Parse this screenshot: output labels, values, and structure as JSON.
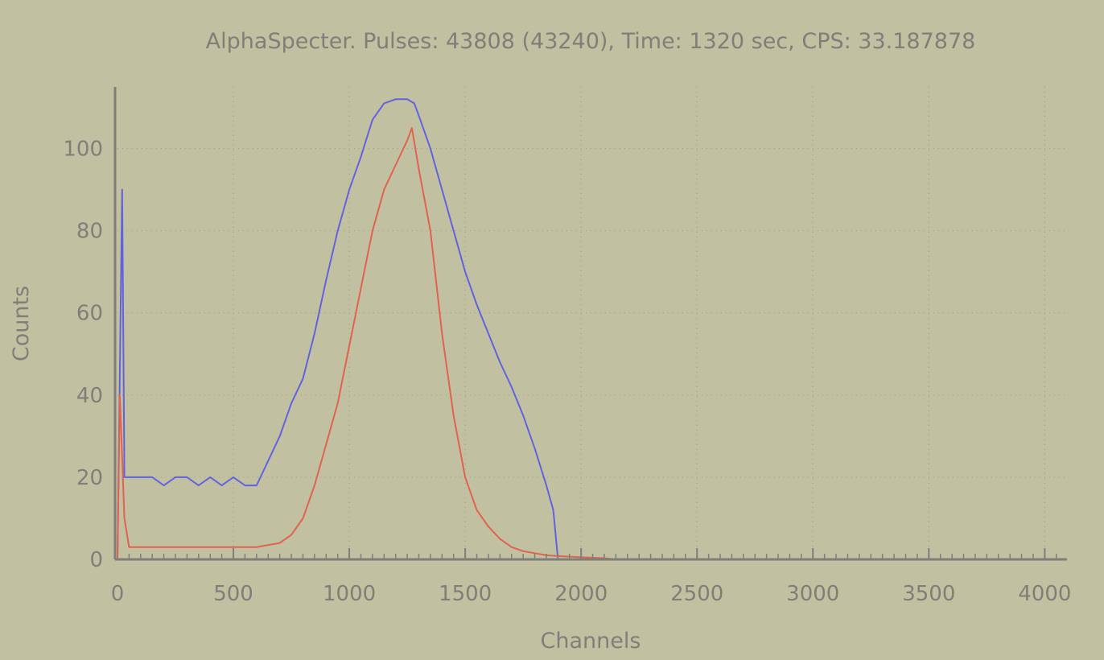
{
  "colors": {
    "background": "#c1c1a1",
    "axis": "#7f7f7a",
    "grid": "#9d9d87",
    "series_blue": "#6262e0",
    "series_red": "#e0624f"
  },
  "chart_data": {
    "type": "line",
    "title": "AlphaSpecter. Pulses: 43808 (43240), Time: 1320 sec, CPS: 33.187878",
    "xlabel": "Channels",
    "ylabel": "Counts",
    "xlim": [
      0,
      4096
    ],
    "ylim": [
      0,
      115
    ],
    "grid": true,
    "x_ticks": [
      0,
      500,
      1000,
      1500,
      2000,
      2500,
      3000,
      3500,
      4000
    ],
    "x_tick_labels": [
      "0",
      "500",
      "1000",
      "1500",
      "2000",
      "2500",
      "3000",
      "3500",
      "4000"
    ],
    "y_ticks": [
      0,
      20,
      40,
      60,
      80,
      100
    ],
    "y_tick_labels": [
      "0",
      "20",
      "40",
      "60",
      "80",
      "100"
    ],
    "series": [
      {
        "color": "#6262e0",
        "x": [
          0,
          10,
          20,
          30,
          50,
          100,
          150,
          200,
          250,
          300,
          350,
          400,
          450,
          500,
          550,
          600,
          650,
          700,
          750,
          800,
          850,
          900,
          950,
          1000,
          1050,
          1100,
          1150,
          1200,
          1250,
          1280,
          1300,
          1350,
          1400,
          1450,
          1500,
          1550,
          1600,
          1650,
          1700,
          1750,
          1800,
          1850,
          1880,
          1890,
          1900,
          1950,
          2000,
          4096
        ],
        "y": [
          0,
          45,
          90,
          20,
          20,
          20,
          20,
          18,
          20,
          20,
          18,
          20,
          18,
          20,
          18,
          18,
          24,
          30,
          38,
          44,
          55,
          68,
          80,
          90,
          98,
          107,
          111,
          112,
          112,
          111,
          108,
          100,
          90,
          80,
          70,
          62,
          55,
          48,
          42,
          35,
          27,
          18,
          12,
          6,
          0,
          0,
          0,
          0
        ]
      },
      {
        "color": "#e0624f",
        "x": [
          0,
          10,
          20,
          30,
          50,
          100,
          200,
          300,
          400,
          500,
          600,
          700,
          750,
          800,
          850,
          900,
          950,
          1000,
          1050,
          1100,
          1150,
          1200,
          1250,
          1270,
          1300,
          1350,
          1400,
          1450,
          1500,
          1550,
          1600,
          1650,
          1700,
          1750,
          1800,
          1850,
          1900,
          2000,
          2100,
          2150,
          4096
        ],
        "y": [
          0,
          40,
          25,
          10,
          3,
          3,
          3,
          3,
          3,
          3,
          3,
          4,
          6,
          10,
          18,
          28,
          38,
          52,
          66,
          80,
          90,
          96,
          102,
          105,
          95,
          80,
          55,
          35,
          20,
          12,
          8,
          5,
          3,
          2,
          1.5,
          1,
          0.8,
          0.5,
          0.3,
          0,
          0
        ]
      }
    ]
  }
}
